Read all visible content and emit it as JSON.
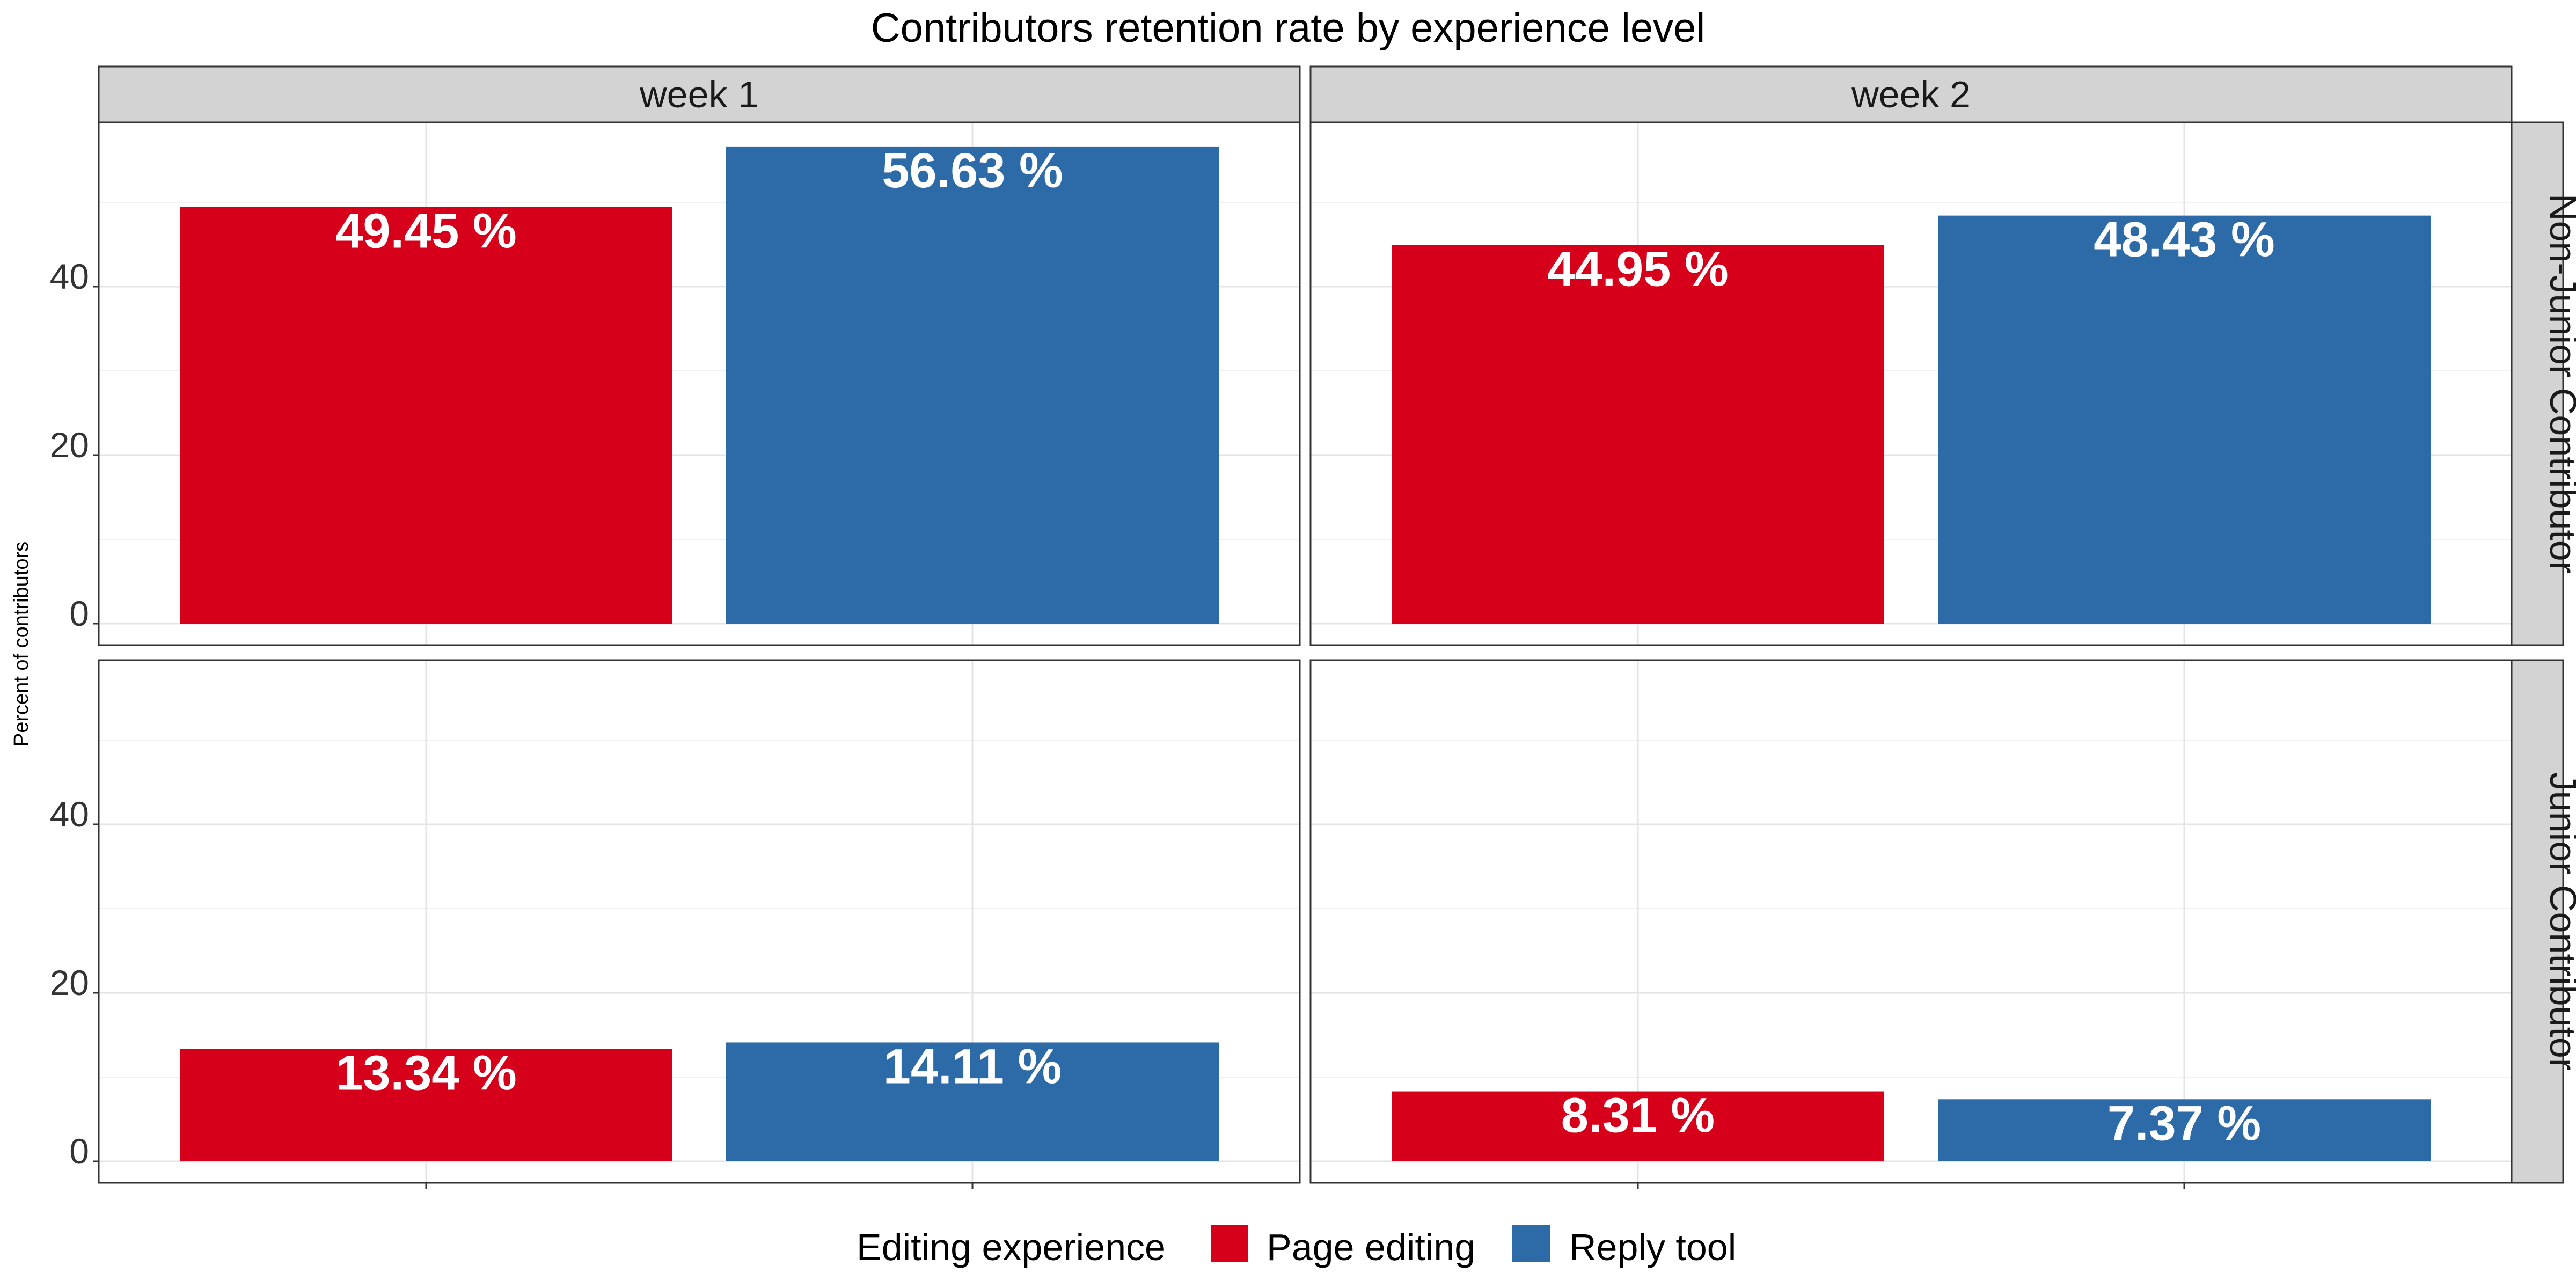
{
  "chart_data": {
    "type": "bar",
    "title": "Contributors retention rate by experience level",
    "ylabel": "Percent of contributors",
    "xlabel": "",
    "ylim": [
      0,
      59
    ],
    "yticks": [
      0,
      20,
      40
    ],
    "grid": true,
    "legend": {
      "title": "Editing experience",
      "placement": "bottom",
      "entries": [
        {
          "name": "Page editing",
          "color": "#D7001A"
        },
        {
          "name": "Reply tool",
          "color": "#2D6AA8"
        }
      ]
    },
    "column_facets": [
      "week 1",
      "week 2"
    ],
    "row_facets": [
      "Non-Junior Contributor",
      "Junior Contributor"
    ],
    "series": [
      {
        "name": "Page editing",
        "color": "#D7001A"
      },
      {
        "name": "Reply tool",
        "color": "#2D6AA8"
      }
    ],
    "panels": [
      {
        "row": "Non-Junior Contributor",
        "col": "week 1",
        "values": [
          49.45,
          56.63
        ],
        "labels": [
          "49.45 %",
          "56.63 %"
        ]
      },
      {
        "row": "Non-Junior Contributor",
        "col": "week 2",
        "values": [
          44.95,
          48.43
        ],
        "labels": [
          "44.95 %",
          "48.43 %"
        ]
      },
      {
        "row": "Junior Contributor",
        "col": "week 1",
        "values": [
          13.34,
          14.11
        ],
        "labels": [
          "13.34 %",
          "14.11 %"
        ]
      },
      {
        "row": "Junior Contributor",
        "col": "week 2",
        "values": [
          8.31,
          7.37
        ],
        "labels": [
          "8.31 %",
          "7.37 %"
        ]
      }
    ]
  }
}
